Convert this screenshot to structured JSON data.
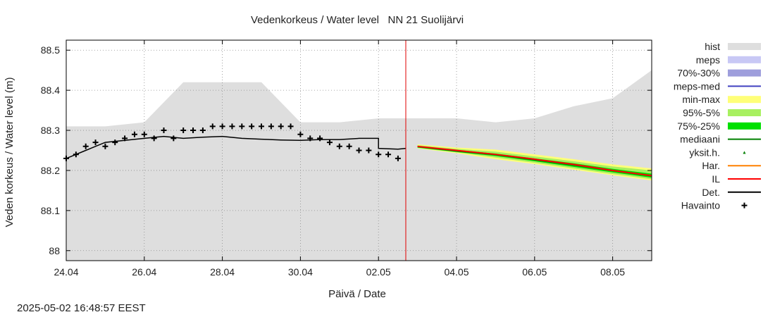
{
  "chart_data": {
    "type": "line",
    "title": "Vedenkorkeus / Water level   NN 21 Suolijärvi",
    "xlabel": "Päivä / Date",
    "ylabel": "Veden korkeus / Water level (m)",
    "xlim": [
      "2025-04-24",
      "2025-05-09"
    ],
    "ylim": [
      87.975,
      88.525
    ],
    "yticks": [
      88,
      88.1,
      88.2,
      88.3,
      88.4,
      88.5
    ],
    "yticklabels": [
      "88",
      "88.1",
      "88.2",
      "88.3",
      "88.4",
      "88.5"
    ],
    "xticks": [
      "2025-04-24",
      "2025-04-26",
      "2025-04-28",
      "2025-04-30",
      "2025-05-02",
      "2025-05-04",
      "2025-05-06",
      "2025-05-08"
    ],
    "xticklabels": [
      "24.04",
      "26.04",
      "28.04",
      "30.04",
      "02.05",
      "04.05",
      "06.05",
      "08.05"
    ],
    "grid": true,
    "legend_position": "right",
    "current_time": "2025-05-02 16:48",
    "legend": [
      {
        "label": "hist",
        "kind": "box",
        "color": "#dedede"
      },
      {
        "label": "meps",
        "kind": "box",
        "color": "#c8c8f5"
      },
      {
        "label": "70%-30%",
        "kind": "box",
        "color": "#9e9edc"
      },
      {
        "label": "meps-med",
        "kind": "line",
        "color": "#4040c0"
      },
      {
        "label": "min-max",
        "kind": "box",
        "color": "#ffff78"
      },
      {
        "label": "95%-5%",
        "kind": "box",
        "color": "#a8f060"
      },
      {
        "label": "75%-25%",
        "kind": "box",
        "color": "#00e000"
      },
      {
        "label": "mediaani",
        "kind": "line",
        "color": "#008000"
      },
      {
        "label": "yksit.h.",
        "kind": "dot",
        "color": "#008000"
      },
      {
        "label": "Har.",
        "kind": "line",
        "color": "#ff8000"
      },
      {
        "label": "IL",
        "kind": "line",
        "color": "#ff0000"
      },
      {
        "label": "Det.",
        "kind": "line",
        "color": "#000000"
      },
      {
        "label": "Havainto",
        "kind": "plus",
        "color": "#000000"
      }
    ],
    "hist_upper": {
      "x": [
        "2025-04-24",
        "2025-04-25",
        "2025-04-26",
        "2025-04-27",
        "2025-04-28",
        "2025-04-29",
        "2025-04-30",
        "2025-05-01",
        "2025-05-02",
        "2025-05-03",
        "2025-05-04",
        "2025-05-05",
        "2025-05-06",
        "2025-05-07",
        "2025-05-08",
        "2025-05-09"
      ],
      "y": [
        88.31,
        88.31,
        88.32,
        88.42,
        88.42,
        88.42,
        88.32,
        88.32,
        88.33,
        88.33,
        88.33,
        88.32,
        88.33,
        88.36,
        88.38,
        88.45
      ]
    },
    "series": [
      {
        "name": "Havainto",
        "style": "plus",
        "color": "#000000",
        "x": [
          "2025-04-24 00:00",
          "2025-04-24 06:00",
          "2025-04-24 12:00",
          "2025-04-24 18:00",
          "2025-04-25 00:00",
          "2025-04-25 06:00",
          "2025-04-25 12:00",
          "2025-04-25 18:00",
          "2025-04-26 00:00",
          "2025-04-26 06:00",
          "2025-04-26 12:00",
          "2025-04-26 18:00",
          "2025-04-27 00:00",
          "2025-04-27 06:00",
          "2025-04-27 12:00",
          "2025-04-27 18:00",
          "2025-04-28 00:00",
          "2025-04-28 06:00",
          "2025-04-28 12:00",
          "2025-04-28 18:00",
          "2025-04-29 00:00",
          "2025-04-29 06:00",
          "2025-04-29 12:00",
          "2025-04-29 18:00",
          "2025-04-30 00:00",
          "2025-04-30 06:00",
          "2025-04-30 12:00",
          "2025-04-30 18:00",
          "2025-05-01 00:00",
          "2025-05-01 06:00",
          "2025-05-01 12:00",
          "2025-05-01 18:00",
          "2025-05-02 00:00",
          "2025-05-02 06:00",
          "2025-05-02 12:00"
        ],
        "y": [
          88.23,
          88.24,
          88.26,
          88.27,
          88.26,
          88.27,
          88.28,
          88.29,
          88.29,
          88.28,
          88.3,
          88.28,
          88.3,
          88.3,
          88.3,
          88.31,
          88.31,
          88.31,
          88.31,
          88.31,
          88.31,
          88.31,
          88.31,
          88.31,
          88.29,
          88.28,
          88.28,
          88.27,
          88.26,
          88.26,
          88.25,
          88.25,
          88.24,
          88.24,
          88.23
        ]
      },
      {
        "name": "Det.",
        "style": "line",
        "color": "#000000",
        "x": [
          "2025-04-24 00:00",
          "2025-04-24 12:00",
          "2025-04-25 00:00",
          "2025-04-25 12:00",
          "2025-04-26 00:00",
          "2025-04-26 12:00",
          "2025-04-27 00:00",
          "2025-04-27 12:00",
          "2025-04-28 00:00",
          "2025-04-28 12:00",
          "2025-04-29 00:00",
          "2025-04-29 12:00",
          "2025-04-30 00:00",
          "2025-04-30 12:00",
          "2025-05-01 00:00",
          "2025-05-01 12:00",
          "2025-05-02 00:00",
          "2025-05-02 00:00",
          "2025-05-02 12:00",
          "2025-05-02 16:48"
        ],
        "y": [
          88.23,
          88.25,
          88.27,
          88.275,
          88.28,
          88.285,
          88.28,
          88.283,
          88.285,
          88.28,
          88.278,
          88.276,
          88.275,
          88.277,
          88.277,
          88.28,
          88.28,
          88.255,
          88.253,
          88.255
        ]
      },
      {
        "name": "IL",
        "style": "line",
        "color": "#ff0000",
        "x": [
          "2025-05-03 00:00",
          "2025-05-04 00:00",
          "2025-05-05 00:00",
          "2025-05-06 00:00",
          "2025-05-07 00:00",
          "2025-05-08 00:00",
          "2025-05-09 00:00"
        ],
        "y": [
          88.26,
          88.25,
          88.24,
          88.228,
          88.215,
          88.2,
          88.187
        ]
      }
    ],
    "ensemble_bands": [
      {
        "name": "min-max",
        "color": "#ffff78",
        "x": [
          "2025-05-03 00:00",
          "2025-05-04 00:00",
          "2025-05-05 00:00",
          "2025-05-06 00:00",
          "2025-05-07 00:00",
          "2025-05-08 00:00",
          "2025-05-09 00:00"
        ],
        "upper": [
          88.265,
          88.257,
          88.252,
          88.24,
          88.228,
          88.215,
          88.205
        ],
        "lower": [
          88.255,
          88.243,
          88.228,
          88.216,
          88.202,
          88.188,
          88.175
        ]
      },
      {
        "name": "95%-5%",
        "color": "#a8f060",
        "x": [
          "2025-05-03 00:00",
          "2025-05-04 00:00",
          "2025-05-05 00:00",
          "2025-05-06 00:00",
          "2025-05-07 00:00",
          "2025-05-08 00:00",
          "2025-05-09 00:00"
        ],
        "upper": [
          88.263,
          88.254,
          88.247,
          88.235,
          88.223,
          88.21,
          88.2
        ],
        "lower": [
          88.256,
          88.245,
          88.232,
          88.219,
          88.205,
          88.191,
          88.178
        ]
      },
      {
        "name": "75%-25%",
        "color": "#00e000",
        "x": [
          "2025-05-03 00:00",
          "2025-05-04 00:00",
          "2025-05-05 00:00",
          "2025-05-06 00:00",
          "2025-05-07 00:00",
          "2025-05-08 00:00",
          "2025-05-09 00:00"
        ],
        "upper": [
          88.261,
          88.251,
          88.242,
          88.23,
          88.218,
          88.204,
          88.192
        ],
        "lower": [
          88.257,
          88.246,
          88.236,
          88.223,
          88.209,
          88.195,
          88.182
        ]
      }
    ],
    "median": {
      "name": "mediaani",
      "color": "#008000",
      "x": [
        "2025-05-03 00:00",
        "2025-05-04 00:00",
        "2025-05-05 00:00",
        "2025-05-06 00:00",
        "2025-05-07 00:00",
        "2025-05-08 00:00",
        "2025-05-09 00:00"
      ],
      "y": [
        88.259,
        88.248,
        88.239,
        88.226,
        88.213,
        88.199,
        88.186
      ]
    }
  },
  "timestamp": "2025-05-02 16:48:57 EEST"
}
